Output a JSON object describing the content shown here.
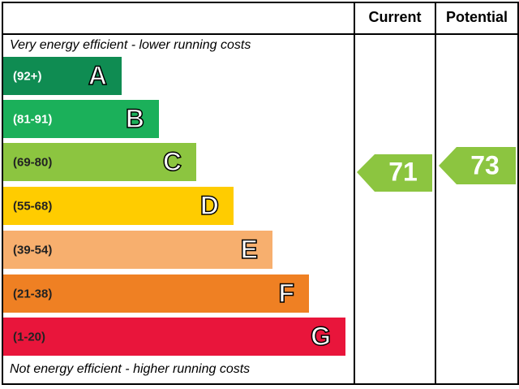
{
  "header": {
    "current": "Current",
    "potential": "Potential"
  },
  "top_note": "Very energy efficient - lower running costs",
  "bottom_note": "Not energy efficient - higher running costs",
  "bands": [
    {
      "range": "(92+)",
      "letter": "A",
      "color": "#0f8c52"
    },
    {
      "range": "(81-91)",
      "letter": "B",
      "color": "#1bb05a"
    },
    {
      "range": "(69-80)",
      "letter": "C",
      "color": "#8cc540"
    },
    {
      "range": "(55-68)",
      "letter": "D",
      "color": "#ffcc00"
    },
    {
      "range": "(39-54)",
      "letter": "E",
      "color": "#f7af6e"
    },
    {
      "range": "(21-38)",
      "letter": "F",
      "color": "#ef8023"
    },
    {
      "range": "(1-20)",
      "letter": "G",
      "color": "#e9153b"
    }
  ],
  "current": {
    "value": "71",
    "color": "#8cc540"
  },
  "potential": {
    "value": "73",
    "color": "#8cc540"
  }
}
